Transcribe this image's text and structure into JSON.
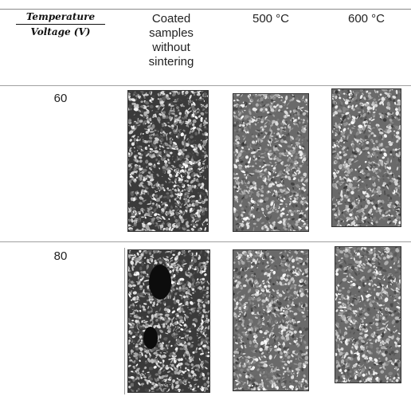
{
  "header": {
    "corner_top": "Temperature",
    "corner_bottom": "Voltage (V)",
    "columns": [
      "Coated samples without sintering",
      "500 °C",
      "600 °C"
    ]
  },
  "rows": [
    {
      "label": "60"
    },
    {
      "label": "80"
    }
  ],
  "images": [
    {
      "name": "sem-60-unsintered"
    },
    {
      "name": "sem-60-500c"
    },
    {
      "name": "sem-60-600c"
    },
    {
      "name": "sem-80-unsintered"
    },
    {
      "name": "sem-80-500c"
    },
    {
      "name": "sem-80-600c"
    }
  ]
}
